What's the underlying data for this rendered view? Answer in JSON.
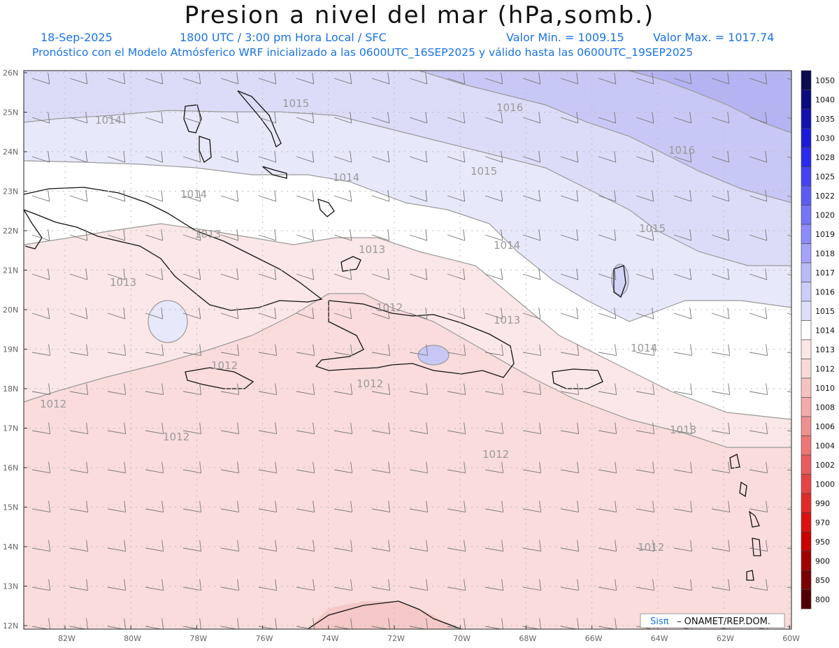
{
  "header": {
    "title": "Presion a nivel del mar (hPa,somb.)",
    "date": "18-Sep-2025",
    "time": "1800 UTC / 3:00 pm Hora Local / SFC",
    "min": "Valor Min. = 1009.15",
    "max": "Valor Max. = 1017.74",
    "model_line": "Pronóstico con el Modelo Atmósferico WRF inicializado a las 0600UTC_16SEP2025 y válido hasta las  0600UTC_19SEP2025"
  },
  "axes": {
    "lat_labels": [
      "26N",
      "25N",
      "24N",
      "23N",
      "22N",
      "21N",
      "20N",
      "19N",
      "18N",
      "17N",
      "16N",
      "15N",
      "14N",
      "13N",
      "12N"
    ],
    "lon_labels": [
      "82W",
      "80W",
      "78W",
      "76W",
      "74W",
      "72W",
      "70W",
      "68W",
      "66W",
      "64W",
      "62W",
      "60W"
    ]
  },
  "colorbar": {
    "levels": [
      "1050",
      "1040",
      "1035",
      "1030",
      "1028",
      "1025",
      "1022",
      "1020",
      "1019",
      "1018",
      "1017",
      "1016",
      "1015",
      "1014",
      "1013",
      "1012",
      "1010",
      "1008",
      "1006",
      "1004",
      "1002",
      "1000",
      "990",
      "970",
      "950",
      "900",
      "850",
      "800"
    ],
    "colors": [
      "#0b0b50",
      "#0b0b80",
      "#1212b0",
      "#1a1ad8",
      "#2a2af0",
      "#4343f5",
      "#5c5cf5",
      "#7575f8",
      "#8c8cf8",
      "#a3a3f8",
      "#babaf8",
      "#cdcdfa",
      "#dedefb",
      "#ffffff",
      "#fbe6e6",
      "#f8d8d8",
      "#f5c2c2",
      "#f2aaaa",
      "#ef9090",
      "#ec7777",
      "#e85c5c",
      "#e54444",
      "#e02a2a",
      "#dd1010",
      "#c80000",
      "#a00000",
      "#780000",
      "#500000"
    ]
  },
  "contour_labels": [
    "1015",
    "1016",
    "1016",
    "1015",
    "1015",
    "1014",
    "1014",
    "1014",
    "1014",
    "1013",
    "1013",
    "1013",
    "1013",
    "1013",
    "1012",
    "1012",
    "1012",
    "1012",
    "1012",
    "1012",
    "1012",
    "1014"
  ],
  "credit": {
    "brand": "Sisπ",
    "text": " – ONAMET/REP.DOM."
  }
}
